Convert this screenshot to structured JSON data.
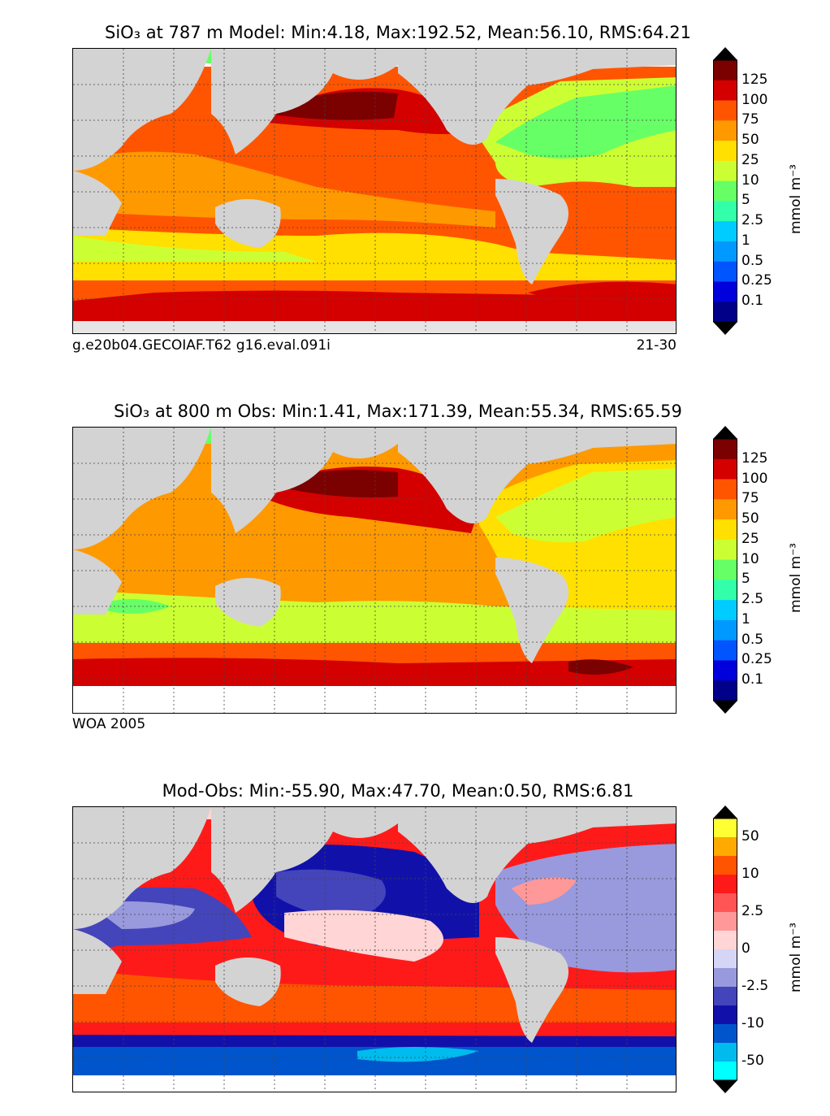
{
  "panels": [
    {
      "title": "SiO₃ at 787 m Model: Min:4.18, Max:192.52, Mean:56.10, RMS:64.21",
      "caption_left": "g.e20b04.GECOIAF.T62 g16.eval.091i",
      "caption_right": "21-30",
      "unit": "mmol m⁻³",
      "colorbar_labels": [
        "125",
        "100",
        "75",
        "50",
        "25",
        "10",
        "5",
        "2.5",
        "1",
        "0.5",
        "0.25",
        "0.1"
      ],
      "colorbar_colors": [
        "#7b0000",
        "#d40000",
        "#ff5500",
        "#ff9900",
        "#ffe000",
        "#ccff33",
        "#66ff66",
        "#33ffaa",
        "#00ccff",
        "#0099ff",
        "#0055ff",
        "#0000dd",
        "#000088"
      ]
    },
    {
      "title": "SiO₃ at 800 m Obs: Min:1.41, Max:171.39, Mean:55.34, RMS:65.59",
      "caption_left": "WOA 2005",
      "caption_right": "",
      "unit": "mmol m⁻³",
      "colorbar_labels": [
        "125",
        "100",
        "75",
        "50",
        "25",
        "10",
        "5",
        "2.5",
        "1",
        "0.5",
        "0.25",
        "0.1"
      ],
      "colorbar_colors": [
        "#7b0000",
        "#d40000",
        "#ff5500",
        "#ff9900",
        "#ffe000",
        "#ccff33",
        "#66ff66",
        "#33ffaa",
        "#00ccff",
        "#0099ff",
        "#0055ff",
        "#0000dd",
        "#000088"
      ]
    },
    {
      "title": "Mod-Obs: Min:-55.90, Max:47.70, Mean:0.50, RMS:6.81",
      "caption_left": "",
      "caption_right": "",
      "unit": "mmol m⁻³",
      "colorbar_labels": [
        "50",
        "10",
        "2.5",
        "0",
        "-2.5",
        "-10",
        "-50"
      ],
      "colorbar_colors": [
        "#ffff33",
        "#ffaa00",
        "#ff5500",
        "#ff1a1a",
        "#ff5555",
        "#ff9999",
        "#ffd5d5",
        "#d5d5f5",
        "#9999dd",
        "#4444bb",
        "#1111aa",
        "#0055cc",
        "#00bbee",
        "#00ffff"
      ]
    }
  ],
  "map_colors": {
    "land": "#d3d3d3",
    "missing": "#ffffff"
  }
}
